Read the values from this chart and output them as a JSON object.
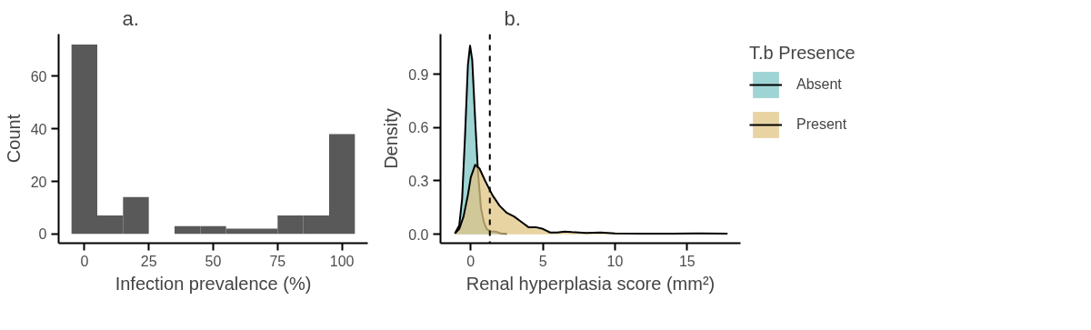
{
  "chart_data": [
    {
      "type": "histogram",
      "title": "a.",
      "xlabel": "Infection prevalence (%)",
      "ylabel": "Count",
      "color": "#595959",
      "bins": [
        -5,
        5,
        15,
        25,
        35,
        45,
        55,
        65,
        75,
        85,
        95,
        105
      ],
      "values": [
        72,
        7,
        14,
        0,
        3,
        3,
        2,
        2,
        7,
        7,
        38
      ],
      "xlim": [
        -10,
        110
      ],
      "ylim": [
        -3.5,
        76
      ],
      "xticks": [
        0,
        25,
        50,
        75,
        100
      ],
      "yticks": [
        0,
        20,
        40,
        60
      ],
      "grid": false
    },
    {
      "type": "area",
      "title": "b.",
      "xlabel": "Renal hyperplasia score (mm²)",
      "ylabel": "Density",
      "legend_title": "T.b Presence",
      "legend": "right",
      "series": [
        {
          "name": "Absent",
          "color": "#7fc5c5",
          "x": [
            -1.1,
            -0.8,
            -0.6,
            -0.4,
            -0.2,
            -0.05,
            0.1,
            0.3,
            0.5,
            0.7,
            0.9,
            1.1,
            1.4,
            1.7,
            2.1,
            2.5
          ],
          "values": [
            0.005,
            0.05,
            0.2,
            0.55,
            0.95,
            1.06,
            0.98,
            0.65,
            0.35,
            0.15,
            0.07,
            0.03,
            0.015,
            0.015,
            0.005,
            0.002
          ]
        },
        {
          "name": "Present",
          "color": "#e0c484",
          "x": [
            -1.1,
            -0.8,
            -0.5,
            -0.2,
            0,
            0.3,
            0.6,
            1,
            1.5,
            2,
            2.5,
            3,
            3.5,
            4,
            4.5,
            5,
            5.5,
            6,
            6.5,
            7,
            8,
            9,
            10,
            12,
            14,
            16,
            17.8
          ],
          "values": [
            0.005,
            0.03,
            0.1,
            0.22,
            0.32,
            0.39,
            0.37,
            0.3,
            0.22,
            0.16,
            0.12,
            0.1,
            0.07,
            0.04,
            0.04,
            0.03,
            0.01,
            0.01,
            0.015,
            0.012,
            0.008,
            0.01,
            0.005,
            0.004,
            0.004,
            0.005,
            0.004
          ]
        }
      ],
      "ref_lines": [
        {
          "axis": "x",
          "value": 1.32,
          "color": "#000000",
          "line_style": "dashed"
        }
      ],
      "xlim": [
        -2.1,
        18.7
      ],
      "ylim": [
        -0.05,
        1.125
      ],
      "xticks": [
        0,
        5,
        10,
        15
      ],
      "yticks": [
        {
          "value": 0,
          "label": "0.0"
        },
        0.3,
        0.6,
        0.9
      ],
      "grid": false
    }
  ]
}
